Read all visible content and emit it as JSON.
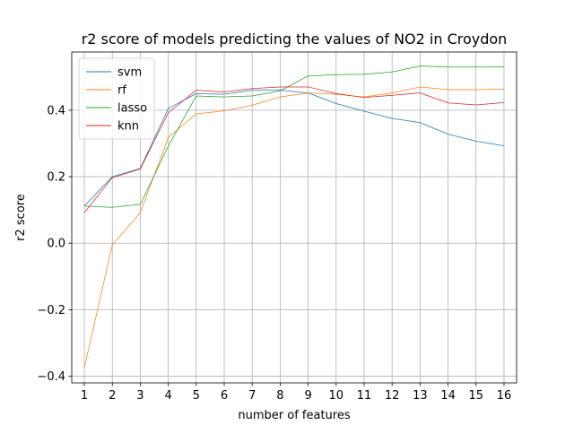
{
  "chart_data": {
    "type": "line",
    "title": "r2 score of models predicting the values of NO2 in Croydon",
    "xlabel": "number of features",
    "ylabel": "r2 score",
    "x": [
      1,
      2,
      3,
      4,
      5,
      6,
      7,
      8,
      9,
      10,
      11,
      12,
      13,
      14,
      15,
      16
    ],
    "xlim": [
      0.55,
      16.45
    ],
    "ylim": [
      -0.42,
      0.575
    ],
    "xticks": [
      "1",
      "2",
      "3",
      "4",
      "5",
      "6",
      "7",
      "8",
      "9",
      "10",
      "11",
      "12",
      "13",
      "14",
      "15",
      "16"
    ],
    "yticks": [
      "−0.4",
      "−0.2",
      "0.0",
      "0.2",
      "0.4"
    ],
    "ytick_values": [
      -0.4,
      -0.2,
      0.0,
      0.2,
      0.4
    ],
    "grid": true,
    "legend_position": "top-left",
    "series": [
      {
        "name": "svm",
        "color": "#1f77b4",
        "values": [
          0.112,
          0.2,
          0.225,
          0.405,
          0.45,
          0.448,
          0.46,
          0.46,
          0.452,
          0.42,
          0.397,
          0.375,
          0.363,
          0.328,
          0.307,
          0.293
        ]
      },
      {
        "name": "rf",
        "color": "#ff7f0e",
        "values": [
          -0.375,
          -0.005,
          0.092,
          0.318,
          0.389,
          0.398,
          0.415,
          0.44,
          0.452,
          0.448,
          0.44,
          0.452,
          0.47,
          0.462,
          0.462,
          0.463
        ]
      },
      {
        "name": "lasso",
        "color": "#2ca02c",
        "values": [
          0.112,
          0.108,
          0.117,
          0.292,
          0.443,
          0.44,
          0.443,
          0.458,
          0.503,
          0.507,
          0.508,
          0.515,
          0.533,
          0.53,
          0.53,
          0.53
        ]
      },
      {
        "name": "knn",
        "color": "#d62728",
        "values": [
          0.092,
          0.197,
          0.223,
          0.392,
          0.46,
          0.455,
          0.465,
          0.47,
          0.47,
          0.45,
          0.438,
          0.445,
          0.452,
          0.422,
          0.416,
          0.423
        ]
      }
    ]
  }
}
